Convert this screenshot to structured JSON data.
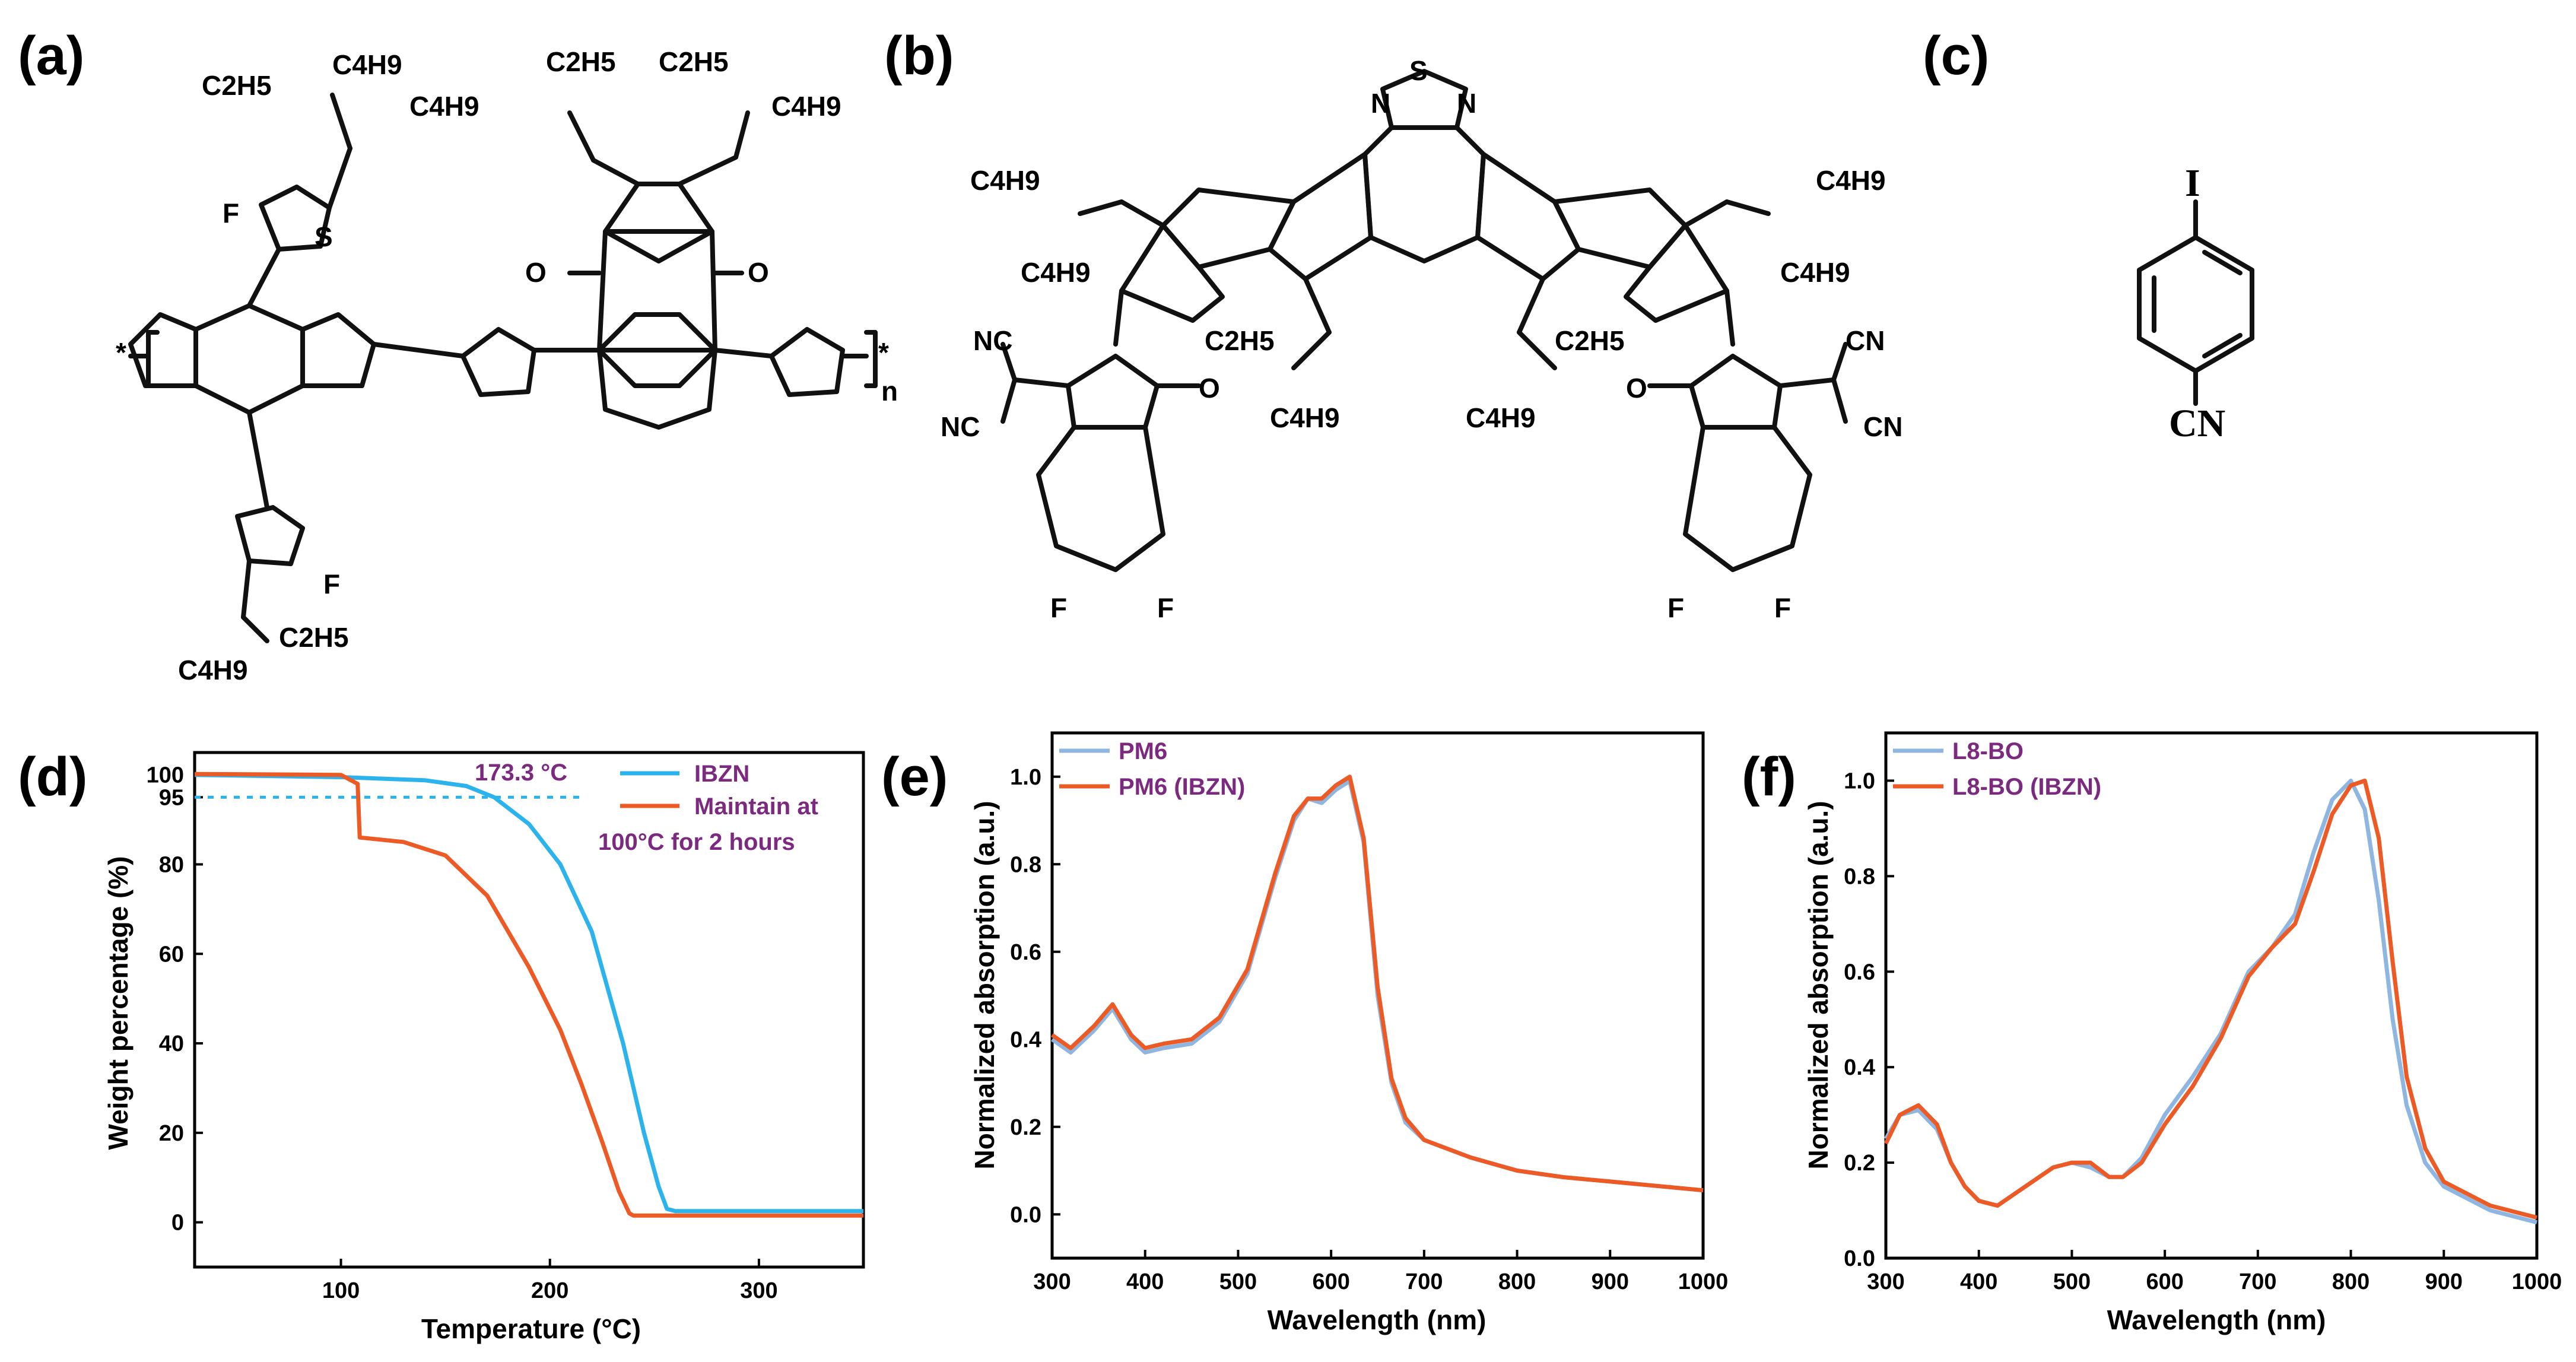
{
  "colors": {
    "ibzn": "#2db3ec",
    "orange": "#ec5a25",
    "pm6_blue": "#8fb6e1",
    "l8_blue": "#8fb6e1",
    "legend_text": "#7b2a7f",
    "polymer_fill": "#a7c6e6",
    "acceptor_fill": "#ef8a62",
    "ibzn_ring": "#12e8f3"
  },
  "panels": {
    "a": {
      "label": "(a)"
    },
    "b": {
      "label": "(b)"
    },
    "c": {
      "label": "(c)"
    },
    "d": {
      "label": "(d)"
    },
    "e": {
      "label": "(e)"
    },
    "f": {
      "label": "(f)"
    }
  },
  "structures": {
    "a": {
      "labels": [
        "C2H5",
        "C4H9",
        "F",
        "S",
        "O",
        "*",
        "n"
      ]
    },
    "b": {
      "labels": [
        "N",
        "S",
        "C4H9",
        "C2H5",
        "CN",
        "NC",
        "O",
        "F"
      ]
    },
    "c": {
      "labels": [
        "I",
        "CN"
      ]
    }
  },
  "chart_data": [
    {
      "id": "d",
      "type": "line",
      "xlabel": "Temperature (°C)",
      "ylabel": "Weight percentage (%)",
      "xlim": [
        30,
        350
      ],
      "ylim": [
        -10,
        105
      ],
      "xticks": [
        100,
        200,
        300
      ],
      "yticks": [
        0,
        20,
        40,
        60,
        80,
        95,
        100
      ],
      "annotation": "173.3 °C",
      "threshold": 95,
      "series": [
        {
          "name": "IBZN",
          "x": [
            30,
            100,
            140,
            160,
            173.3,
            190,
            205,
            220,
            235,
            245,
            252,
            256,
            260,
            350
          ],
          "y": [
            100,
            99.5,
            98.8,
            97.5,
            95,
            89,
            80,
            65,
            40,
            20,
            8,
            3,
            2.5,
            2.5
          ]
        },
        {
          "name": "Maintain at 100°C for 2 hours",
          "x": [
            30,
            100,
            108,
            109,
            130,
            150,
            170,
            190,
            205,
            215,
            225,
            233,
            238,
            240,
            350
          ],
          "y": [
            100.2,
            100,
            98,
            86,
            85,
            82,
            73,
            57,
            43,
            31,
            18,
            7,
            2,
            1.5,
            1.5
          ]
        }
      ]
    },
    {
      "id": "e",
      "type": "line",
      "xlabel": "Wavelength (nm)",
      "ylabel": "Normalized absorption (a.u.)",
      "xlim": [
        300,
        1000
      ],
      "ylim": [
        -0.1,
        1.1
      ],
      "xticks": [
        300,
        400,
        500,
        600,
        700,
        800,
        900,
        1000
      ],
      "yticks": [
        0.0,
        0.2,
        0.4,
        0.6,
        0.8,
        1.0
      ],
      "series": [
        {
          "name": "PM6",
          "x": [
            300,
            320,
            345,
            365,
            385,
            400,
            420,
            450,
            480,
            510,
            540,
            560,
            575,
            590,
            605,
            620,
            635,
            650,
            665,
            680,
            700,
            750,
            800,
            850,
            900,
            950,
            1000
          ],
          "y": [
            0.4,
            0.37,
            0.42,
            0.47,
            0.4,
            0.37,
            0.38,
            0.39,
            0.44,
            0.55,
            0.77,
            0.9,
            0.95,
            0.94,
            0.97,
            0.99,
            0.85,
            0.5,
            0.3,
            0.21,
            0.17,
            0.13,
            0.1,
            0.085,
            0.075,
            0.065,
            0.055
          ]
        },
        {
          "name": "PM6 (IBZN)",
          "x": [
            300,
            320,
            345,
            365,
            385,
            400,
            420,
            450,
            480,
            510,
            540,
            560,
            575,
            590,
            605,
            620,
            635,
            650,
            665,
            680,
            700,
            750,
            800,
            850,
            900,
            950,
            1000
          ],
          "y": [
            0.41,
            0.38,
            0.43,
            0.48,
            0.41,
            0.38,
            0.39,
            0.4,
            0.45,
            0.56,
            0.78,
            0.91,
            0.95,
            0.95,
            0.98,
            1.0,
            0.86,
            0.52,
            0.31,
            0.22,
            0.17,
            0.13,
            0.1,
            0.085,
            0.075,
            0.065,
            0.055
          ]
        }
      ]
    },
    {
      "id": "f",
      "type": "line",
      "xlabel": "Wavelength (nm)",
      "ylabel": "Normalized absorption (a.u.)",
      "xlim": [
        300,
        1000
      ],
      "ylim": [
        0.0,
        1.1
      ],
      "xticks": [
        300,
        400,
        500,
        600,
        700,
        800,
        900,
        1000
      ],
      "yticks": [
        0.0,
        0.2,
        0.4,
        0.6,
        0.8,
        1.0
      ],
      "series": [
        {
          "name": "L8-BO",
          "x": [
            300,
            315,
            335,
            355,
            370,
            385,
            400,
            420,
            450,
            480,
            500,
            520,
            540,
            555,
            575,
            600,
            630,
            660,
            690,
            715,
            740,
            760,
            780,
            800,
            815,
            830,
            845,
            860,
            880,
            900,
            950,
            1000
          ],
          "y": [
            0.25,
            0.3,
            0.31,
            0.27,
            0.2,
            0.15,
            0.12,
            0.11,
            0.15,
            0.19,
            0.2,
            0.19,
            0.17,
            0.17,
            0.21,
            0.3,
            0.38,
            0.47,
            0.6,
            0.65,
            0.72,
            0.85,
            0.96,
            1.0,
            0.94,
            0.75,
            0.5,
            0.32,
            0.2,
            0.15,
            0.1,
            0.075
          ]
        },
        {
          "name": "L8-BO (IBZN)",
          "x": [
            300,
            315,
            335,
            355,
            370,
            385,
            400,
            420,
            450,
            480,
            500,
            520,
            540,
            555,
            575,
            600,
            630,
            660,
            690,
            715,
            740,
            760,
            780,
            800,
            815,
            830,
            845,
            860,
            880,
            900,
            950,
            1000
          ],
          "y": [
            0.24,
            0.3,
            0.32,
            0.28,
            0.2,
            0.15,
            0.12,
            0.11,
            0.15,
            0.19,
            0.2,
            0.2,
            0.17,
            0.17,
            0.2,
            0.28,
            0.36,
            0.46,
            0.59,
            0.65,
            0.7,
            0.81,
            0.93,
            0.99,
            1.0,
            0.88,
            0.62,
            0.38,
            0.23,
            0.16,
            0.11,
            0.085
          ]
        }
      ]
    }
  ]
}
